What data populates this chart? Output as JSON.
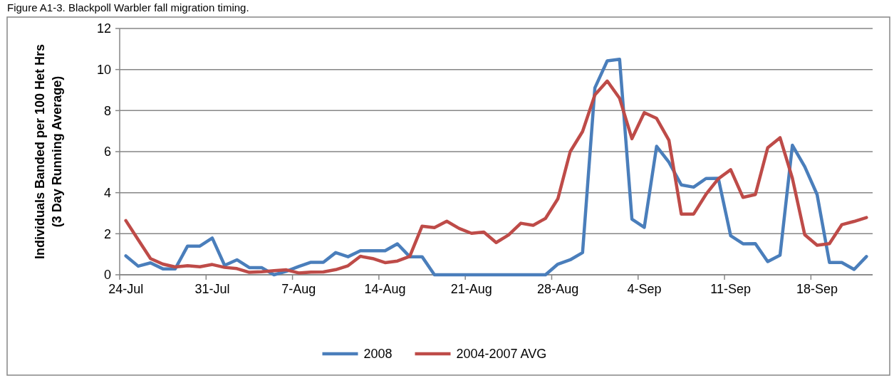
{
  "chart_data": {
    "type": "line",
    "title": "Figure A1-3. Blackpoll Warbler fall migration timing.",
    "ylabel": "Individuals Banded per 100 Het Hrs\n(3 Day Running Average)",
    "categories": [
      "24-Jul",
      null,
      null,
      null,
      null,
      null,
      null,
      "31-Jul",
      null,
      null,
      null,
      null,
      null,
      null,
      "7-Aug",
      null,
      null,
      null,
      null,
      null,
      null,
      "14-Aug",
      null,
      null,
      null,
      null,
      null,
      null,
      "21-Aug",
      null,
      null,
      null,
      null,
      null,
      null,
      "28-Aug",
      null,
      null,
      null,
      null,
      null,
      null,
      "4-Sep",
      null,
      null,
      null,
      null,
      null,
      null,
      "11-Sep",
      null,
      null,
      null,
      null,
      null,
      null,
      "18-Sep",
      null,
      null,
      null,
      null
    ],
    "series": [
      {
        "name": "2008",
        "color": "#4a7ebb",
        "values": [
          0.92,
          0.42,
          0.58,
          0.29,
          0.29,
          1.4,
          1.4,
          1.79,
          0.46,
          0.73,
          0.35,
          0.35,
          0,
          0.17,
          0.4,
          0.61,
          0.61,
          1.08,
          0.88,
          1.17,
          1.17,
          1.17,
          1.51,
          0.88,
          0.88,
          0,
          0,
          0,
          0,
          0,
          0,
          0,
          0,
          0,
          0,
          0.52,
          0.73,
          1.08,
          9.11,
          10.42,
          10.5,
          2.71,
          2.31,
          6.26,
          5.48,
          4.38,
          4.27,
          4.69,
          4.7,
          1.9,
          1.51,
          1.52,
          0.64,
          0.95,
          6.31,
          5.27,
          3.91,
          0.6,
          0.6,
          0.26,
          0.89
        ]
      },
      {
        "name": "2004-2007 AVG",
        "color": "#be4b48",
        "values": [
          2.64,
          1.71,
          0.79,
          0.52,
          0.38,
          0.44,
          0.39,
          0.5,
          0.36,
          0.3,
          0.12,
          0.15,
          0.2,
          0.24,
          0.09,
          0.13,
          0.14,
          0.25,
          0.44,
          0.9,
          0.79,
          0.59,
          0.67,
          0.9,
          2.37,
          2.3,
          2.61,
          2.26,
          2.02,
          2.08,
          1.57,
          1.94,
          2.51,
          2.41,
          2.75,
          3.7,
          6.0,
          6.98,
          8.77,
          9.44,
          8.6,
          6.63,
          7.9,
          7.62,
          6.55,
          2.96,
          2.96,
          3.92,
          4.68,
          5.12,
          3.77,
          3.91,
          6.19,
          6.68,
          4.7,
          1.95,
          1.44,
          1.52,
          2.44,
          2.6,
          2.79
        ]
      }
    ],
    "ylim": [
      0,
      12
    ],
    "yticks": [
      0,
      2,
      4,
      6,
      8,
      10,
      12
    ],
    "grid": "y",
    "legend": "bottom",
    "marker": "none",
    "line_style": "solid"
  }
}
